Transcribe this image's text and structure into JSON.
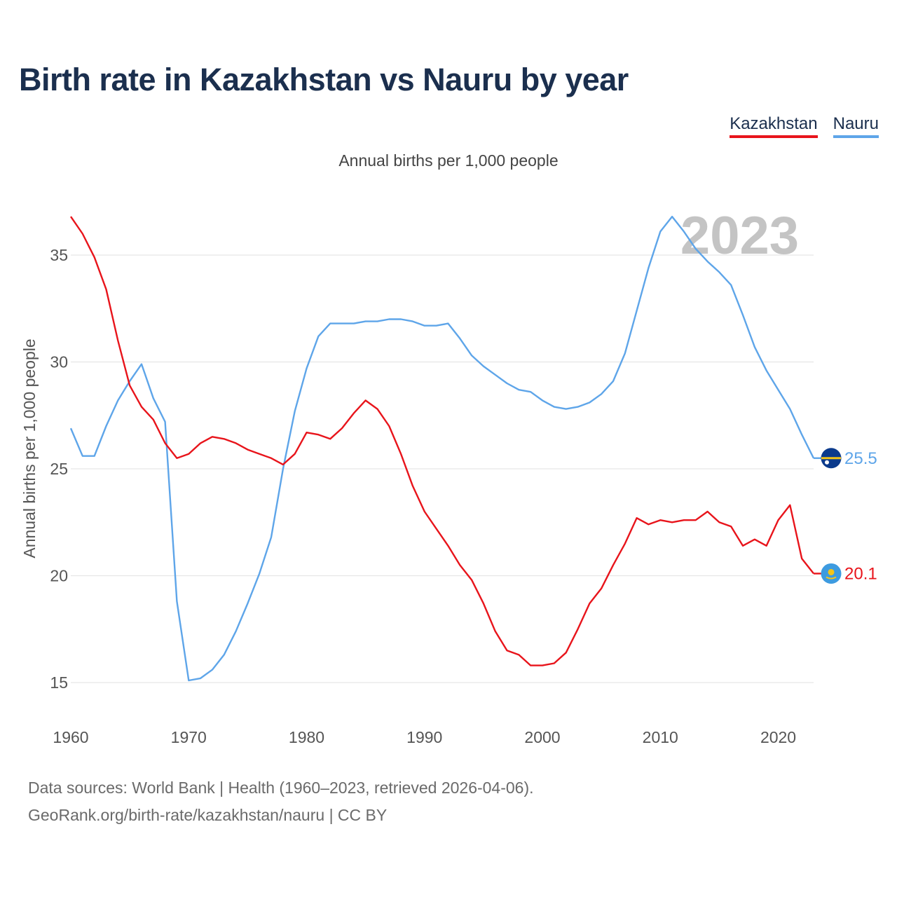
{
  "title": "Birth rate in Kazakhstan vs Nauru by year",
  "subtitle": "Annual births per 1,000 people",
  "legend": [
    {
      "label": "Kazakhstan",
      "color": "#e8141b"
    },
    {
      "label": "Nauru",
      "color": "#5ea5e9"
    }
  ],
  "year_label": "2023",
  "footer": {
    "line1": "Data sources: World Bank | Health (1960–2023, retrieved 2026-04-06).",
    "line2": "GeoRank.org/birth-rate/kazakhstan/nauru | CC BY"
  },
  "chart_data": {
    "type": "line",
    "title": "Birth rate in Kazakhstan vs Nauru by year",
    "ylabel": "Annual births per 1,000 people",
    "xlabel": "",
    "xlim": [
      1960,
      2023
    ],
    "ylim": [
      15,
      37
    ],
    "x_ticks": [
      1960,
      1970,
      1980,
      1990,
      2000,
      2010,
      2020
    ],
    "y_ticks": [
      15,
      20,
      25,
      30,
      35
    ],
    "grid": "horizontal",
    "legend_position": "top-right",
    "x": [
      1960,
      1961,
      1962,
      1963,
      1964,
      1965,
      1966,
      1967,
      1968,
      1969,
      1970,
      1971,
      1972,
      1973,
      1974,
      1975,
      1976,
      1977,
      1978,
      1979,
      1980,
      1981,
      1982,
      1983,
      1984,
      1985,
      1986,
      1987,
      1988,
      1989,
      1990,
      1991,
      1992,
      1993,
      1994,
      1995,
      1996,
      1997,
      1998,
      1999,
      2000,
      2001,
      2002,
      2003,
      2004,
      2005,
      2006,
      2007,
      2008,
      2009,
      2010,
      2011,
      2012,
      2013,
      2014,
      2015,
      2016,
      2017,
      2018,
      2019,
      2020,
      2021,
      2022,
      2023
    ],
    "series": [
      {
        "name": "Kazakhstan",
        "color": "#e8141b",
        "end_label": "20.1",
        "values": [
          36.8,
          36.0,
          34.9,
          33.4,
          31.0,
          28.9,
          27.9,
          27.3,
          26.2,
          25.5,
          25.7,
          26.2,
          26.5,
          26.4,
          26.2,
          25.9,
          25.7,
          25.5,
          25.2,
          25.7,
          26.7,
          26.6,
          26.4,
          26.9,
          27.6,
          28.2,
          27.8,
          27.0,
          25.7,
          24.2,
          23.0,
          22.2,
          21.4,
          20.5,
          19.8,
          18.7,
          17.4,
          16.5,
          16.3,
          15.8,
          15.8,
          15.9,
          16.4,
          17.5,
          18.7,
          19.4,
          20.5,
          21.5,
          22.7,
          22.4,
          22.6,
          22.5,
          22.6,
          22.6,
          23.0,
          22.5,
          22.3,
          21.4,
          21.7,
          21.4,
          22.6,
          23.3,
          20.8,
          20.1
        ]
      },
      {
        "name": "Nauru",
        "color": "#5ea5e9",
        "end_label": "25.5",
        "values": [
          26.9,
          25.6,
          25.6,
          27.0,
          28.2,
          29.1,
          29.9,
          28.3,
          27.2,
          18.8,
          15.1,
          15.2,
          15.6,
          16.3,
          17.4,
          18.7,
          20.1,
          21.8,
          25.0,
          27.7,
          29.7,
          31.2,
          31.8,
          31.8,
          31.8,
          31.9,
          31.9,
          32.0,
          32.0,
          31.9,
          31.7,
          31.7,
          31.8,
          31.1,
          30.3,
          29.8,
          29.4,
          29.0,
          28.7,
          28.6,
          28.2,
          27.9,
          27.8,
          27.9,
          28.1,
          28.5,
          29.1,
          30.4,
          32.4,
          34.4,
          36.1,
          36.8,
          36.1,
          35.3,
          34.7,
          34.2,
          33.6,
          32.2,
          30.7,
          29.6,
          28.7,
          27.8,
          26.6,
          25.5
        ]
      }
    ]
  }
}
